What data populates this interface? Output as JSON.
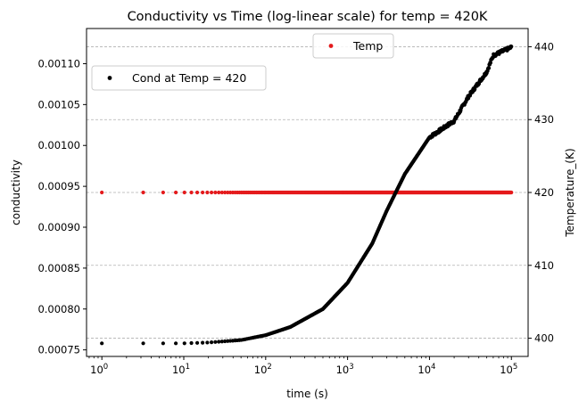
{
  "chart_data": {
    "type": "scatter",
    "title": "Conductivity vs Time (log-linear scale) for temp = 420K",
    "xlabel": "time (s)",
    "ylabel_left": "conductivity",
    "ylabel_right": "Temperature_(K)",
    "x_scale": "log",
    "xlim": [
      0.65,
      160000
    ],
    "ylim_left": [
      0.000742,
      0.001143
    ],
    "ylim_right": [
      397.5,
      442.5
    ],
    "x_ticks": [
      {
        "value": 1,
        "base": "10",
        "exp": "0"
      },
      {
        "value": 10,
        "base": "10",
        "exp": "1"
      },
      {
        "value": 100,
        "base": "10",
        "exp": "2"
      },
      {
        "value": 1000,
        "base": "10",
        "exp": "3"
      },
      {
        "value": 10000,
        "base": "10",
        "exp": "4"
      },
      {
        "value": 100000,
        "base": "10",
        "exp": "5"
      }
    ],
    "y_left_ticks": [
      {
        "value": 0.00075,
        "label": "0.00075"
      },
      {
        "value": 0.0008,
        "label": "0.00080"
      },
      {
        "value": 0.00085,
        "label": "0.00085"
      },
      {
        "value": 0.0009,
        "label": "0.00090"
      },
      {
        "value": 0.00095,
        "label": "0.00095"
      },
      {
        "value": 0.001,
        "label": "0.00100"
      },
      {
        "value": 0.00105,
        "label": "0.00105"
      },
      {
        "value": 0.0011,
        "label": "0.00110"
      }
    ],
    "y_right_ticks": [
      {
        "value": 400,
        "label": "400"
      },
      {
        "value": 410,
        "label": "410"
      },
      {
        "value": 420,
        "label": "420"
      },
      {
        "value": 430,
        "label": "430"
      },
      {
        "value": 440,
        "label": "440"
      }
    ],
    "grid": "horizontal dashed at right-axis ticks",
    "series": [
      {
        "name": "Cond at Temp = 420",
        "axis": "left",
        "color": "#000000",
        "x_range": [
          1,
          100000
        ],
        "points": [
          [
            1,
            0.000758
          ],
          [
            3.2,
            0.000758
          ],
          [
            5.6,
            0.000758
          ],
          [
            8,
            0.000758
          ],
          [
            10,
            0.000758
          ],
          [
            20,
            0.000759
          ],
          [
            50,
            0.000762
          ],
          [
            100,
            0.000768
          ],
          [
            200,
            0.000778
          ],
          [
            500,
            0.0008
          ],
          [
            1000,
            0.000832
          ],
          [
            2000,
            0.00088
          ],
          [
            3000,
            0.00092
          ],
          [
            5000,
            0.000965
          ],
          [
            10000,
            0.00101
          ],
          [
            20000,
            0.00103
          ],
          [
            30000,
            0.00106
          ],
          [
            50000,
            0.00109
          ],
          [
            60000,
            0.00111
          ],
          [
            100000,
            0.00112
          ]
        ]
      },
      {
        "name": "Temp",
        "axis": "right",
        "color": "#e41a1c",
        "x_range": [
          1,
          100000
        ],
        "value": 420
      }
    ],
    "legend": [
      {
        "label": "Cond at Temp = 420",
        "color": "#000000",
        "placement": "upper-left"
      },
      {
        "label": "Temp",
        "color": "#e41a1c",
        "placement": "upper-center"
      }
    ]
  }
}
